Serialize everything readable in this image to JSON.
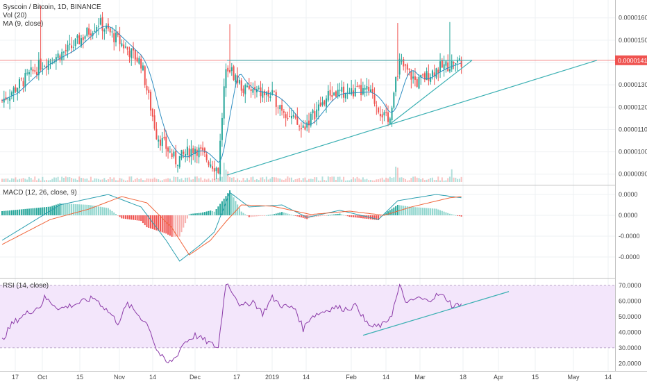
{
  "chart_data": {
    "type": "candlestick",
    "title": "Syscoin / Bitcoin, 1D, BINANCE",
    "overlays": [
      "Vol (20)",
      "MA (9, close)"
    ],
    "price_axis_ticks": [
      "0.00001600",
      "0.00001500",
      "0.00001400",
      "0.00001300",
      "0.00001200",
      "0.00001100",
      "0.00001000",
      "0.00000900"
    ],
    "last_price": "0.00001410",
    "ylim": [
      8.65e-06,
      1.68e-05
    ],
    "x_axis_ticks": [
      "17",
      "Oct",
      "15",
      "Nov",
      "14",
      "Dec",
      "17",
      "2019",
      "14",
      "Feb",
      "14",
      "Mar",
      "18",
      "Apr",
      "15",
      "May",
      "14"
    ],
    "price_close_keypoints": [
      {
        "bar": 0,
        "close": 1.23e-05
      },
      {
        "bar": 20,
        "close": 1.39e-05
      },
      {
        "bar": 35,
        "close": 1.46e-05
      },
      {
        "bar": 50,
        "close": 1.58e-05
      },
      {
        "bar": 60,
        "close": 1.5e-05
      },
      {
        "bar": 72,
        "close": 1.4e-05
      },
      {
        "bar": 80,
        "close": 1.08e-05
      },
      {
        "bar": 90,
        "close": 9.6e-06
      },
      {
        "bar": 100,
        "close": 1.02e-05
      },
      {
        "bar": 112,
        "close": 9.2e-06
      },
      {
        "bar": 116,
        "close": 1.4e-05
      },
      {
        "bar": 125,
        "close": 1.28e-05
      },
      {
        "bar": 140,
        "close": 1.25e-05
      },
      {
        "bar": 155,
        "close": 1.1e-05
      },
      {
        "bar": 170,
        "close": 1.26e-05
      },
      {
        "bar": 190,
        "close": 1.27e-05
      },
      {
        "bar": 200,
        "close": 1.13e-05
      },
      {
        "bar": 206,
        "close": 1.4e-05
      },
      {
        "bar": 215,
        "close": 1.31e-05
      },
      {
        "bar": 225,
        "close": 1.37e-05
      },
      {
        "bar": 238,
        "close": 1.41e-05
      }
    ],
    "macd": {
      "label": "MACD (12, 26, close, 9)",
      "axis_ticks": [
        "0.0000",
        "0.0000",
        "-0.0000",
        "-0.0000"
      ],
      "macd_keypoints": [
        {
          "bar": 0,
          "v": -0.6
        },
        {
          "bar": 30,
          "v": 0.25
        },
        {
          "bar": 55,
          "v": 0.5
        },
        {
          "bar": 72,
          "v": 0.2
        },
        {
          "bar": 85,
          "v": -0.6
        },
        {
          "bar": 92,
          "v": -1.1
        },
        {
          "bar": 103,
          "v": -0.7
        },
        {
          "bar": 110,
          "v": -0.4
        },
        {
          "bar": 118,
          "v": 0.55
        },
        {
          "bar": 128,
          "v": 0.2
        },
        {
          "bar": 145,
          "v": 0.25
        },
        {
          "bar": 158,
          "v": -0.05
        },
        {
          "bar": 175,
          "v": 0.12
        },
        {
          "bar": 195,
          "v": -0.1
        },
        {
          "bar": 205,
          "v": 0.35
        },
        {
          "bar": 225,
          "v": 0.5
        },
        {
          "bar": 238,
          "v": 0.42
        }
      ],
      "signal_keypoints": [
        {
          "bar": 0,
          "v": -0.7
        },
        {
          "bar": 25,
          "v": -0.1
        },
        {
          "bar": 45,
          "v": 0.15
        },
        {
          "bar": 62,
          "v": 0.45
        },
        {
          "bar": 75,
          "v": 0.3
        },
        {
          "bar": 88,
          "v": -0.3
        },
        {
          "bar": 97,
          "v": -0.95
        },
        {
          "bar": 108,
          "v": -0.6
        },
        {
          "bar": 116,
          "v": -0.15
        },
        {
          "bar": 124,
          "v": 0.25
        },
        {
          "bar": 140,
          "v": 0.22
        },
        {
          "bar": 160,
          "v": 0.02
        },
        {
          "bar": 180,
          "v": 0.1
        },
        {
          "bar": 198,
          "v": 0.0
        },
        {
          "bar": 212,
          "v": 0.2
        },
        {
          "bar": 232,
          "v": 0.42
        },
        {
          "bar": 238,
          "v": 0.45
        }
      ]
    },
    "rsi": {
      "label": "RSI (14, close)",
      "axis_ticks": [
        "70.0000",
        "60.0000",
        "50.0000",
        "40.0000",
        "30.0000",
        "20.0000"
      ],
      "band": [
        30,
        70
      ],
      "ylim": [
        17,
        73
      ],
      "keypoints": [
        {
          "bar": 0,
          "v": 35
        },
        {
          "bar": 5,
          "v": 45
        },
        {
          "bar": 10,
          "v": 50
        },
        {
          "bar": 20,
          "v": 57
        },
        {
          "bar": 22,
          "v": 62
        },
        {
          "bar": 30,
          "v": 55
        },
        {
          "bar": 38,
          "v": 58
        },
        {
          "bar": 48,
          "v": 62
        },
        {
          "bar": 56,
          "v": 52
        },
        {
          "bar": 60,
          "v": 46
        },
        {
          "bar": 65,
          "v": 58
        },
        {
          "bar": 70,
          "v": 52
        },
        {
          "bar": 76,
          "v": 44
        },
        {
          "bar": 80,
          "v": 29
        },
        {
          "bar": 84,
          "v": 22
        },
        {
          "bar": 86,
          "v": 20
        },
        {
          "bar": 90,
          "v": 24
        },
        {
          "bar": 94,
          "v": 33
        },
        {
          "bar": 100,
          "v": 38
        },
        {
          "bar": 106,
          "v": 34
        },
        {
          "bar": 112,
          "v": 30
        },
        {
          "bar": 116,
          "v": 72
        },
        {
          "bar": 120,
          "v": 65
        },
        {
          "bar": 124,
          "v": 56
        },
        {
          "bar": 130,
          "v": 60
        },
        {
          "bar": 135,
          "v": 52
        },
        {
          "bar": 140,
          "v": 62
        },
        {
          "bar": 145,
          "v": 57
        },
        {
          "bar": 152,
          "v": 55
        },
        {
          "bar": 156,
          "v": 42
        },
        {
          "bar": 160,
          "v": 50
        },
        {
          "bar": 166,
          "v": 53
        },
        {
          "bar": 172,
          "v": 56
        },
        {
          "bar": 178,
          "v": 55
        },
        {
          "bar": 184,
          "v": 57
        },
        {
          "bar": 188,
          "v": 47
        },
        {
          "bar": 192,
          "v": 43
        },
        {
          "bar": 198,
          "v": 45
        },
        {
          "bar": 202,
          "v": 52
        },
        {
          "bar": 206,
          "v": 69
        },
        {
          "bar": 210,
          "v": 58
        },
        {
          "bar": 215,
          "v": 62
        },
        {
          "bar": 220,
          "v": 60
        },
        {
          "bar": 226,
          "v": 64
        },
        {
          "bar": 230,
          "v": 62
        },
        {
          "bar": 234,
          "v": 56
        },
        {
          "bar": 238,
          "v": 59
        }
      ]
    },
    "colors": {
      "up": "#26a69a",
      "down": "#ef5350",
      "ma": "#2f8ec2",
      "trendline": "#3bb0b3",
      "price_line": "#ef5350",
      "macd_line": "#2b9fb0",
      "signal_line": "#f0653a",
      "rsi_line": "#8b3aa8",
      "rsi_band": "#f3e6fb"
    },
    "grid": true
  }
}
